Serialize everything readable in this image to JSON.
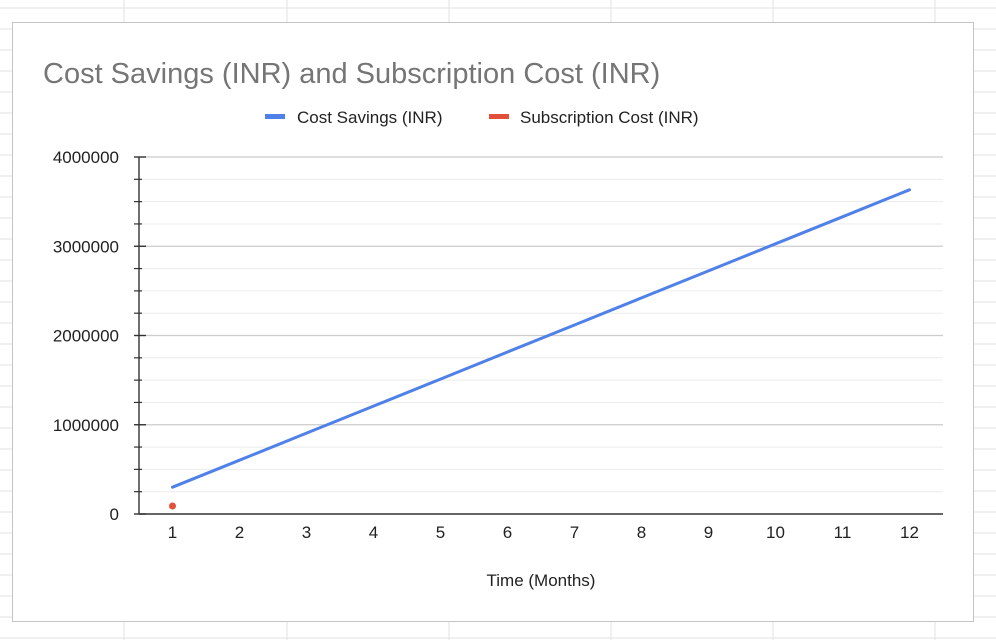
{
  "chart_data": {
    "type": "line",
    "title": "Cost Savings (INR) and Subscription Cost (INR)",
    "xlabel": "Time (Months)",
    "ylabel": "",
    "x": [
      1,
      2,
      3,
      4,
      5,
      6,
      7,
      8,
      9,
      10,
      11,
      12
    ],
    "ylim": [
      0,
      4000000
    ],
    "yticks": [
      "0",
      "1000000",
      "2000000",
      "3000000",
      "4000000"
    ],
    "grid": true,
    "legend_position": "top",
    "series": [
      {
        "name": "Cost Savings (INR)",
        "color": "#4f81e8",
        "values": [
          300000,
          603000,
          906000,
          1209000,
          1512000,
          1815000,
          2118000,
          2421000,
          2724000,
          3027000,
          3330000,
          3633000
        ]
      },
      {
        "name": "Subscription Cost (INR)",
        "color": "#e24f3b",
        "values": [
          90000,
          null,
          null,
          null,
          null,
          null,
          null,
          null,
          null,
          null,
          null,
          null
        ]
      }
    ]
  }
}
